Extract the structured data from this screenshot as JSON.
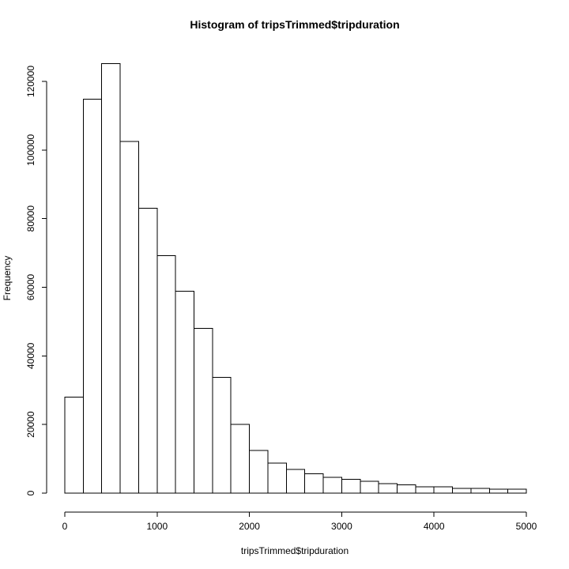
{
  "chart_data": {
    "type": "bar",
    "title": "Histogram of tripsTrimmed$tripduration",
    "xlabel": "tripsTrimmed$tripduration",
    "ylabel": "Frequency",
    "bin_width": 200,
    "xlim": [
      0,
      5000
    ],
    "ylim": [
      0,
      125000
    ],
    "x_ticks": [
      0,
      1000,
      2000,
      3000,
      4000,
      5000
    ],
    "y_ticks": [
      0,
      20000,
      40000,
      60000,
      80000,
      100000,
      120000
    ],
    "bins": [
      {
        "start": 0,
        "end": 200,
        "value": 28000
      },
      {
        "start": 200,
        "end": 400,
        "value": 114800
      },
      {
        "start": 400,
        "end": 600,
        "value": 125200
      },
      {
        "start": 600,
        "end": 800,
        "value": 102500
      },
      {
        "start": 800,
        "end": 1000,
        "value": 83000
      },
      {
        "start": 1000,
        "end": 1200,
        "value": 69200
      },
      {
        "start": 1200,
        "end": 1400,
        "value": 58800
      },
      {
        "start": 1400,
        "end": 1600,
        "value": 48000
      },
      {
        "start": 1600,
        "end": 1800,
        "value": 33700
      },
      {
        "start": 1800,
        "end": 2000,
        "value": 20000
      },
      {
        "start": 2000,
        "end": 2200,
        "value": 12400
      },
      {
        "start": 2200,
        "end": 2400,
        "value": 8700
      },
      {
        "start": 2400,
        "end": 2600,
        "value": 6900
      },
      {
        "start": 2600,
        "end": 2800,
        "value": 5600
      },
      {
        "start": 2800,
        "end": 3000,
        "value": 4600
      },
      {
        "start": 3000,
        "end": 3200,
        "value": 4000
      },
      {
        "start": 3200,
        "end": 3400,
        "value": 3500
      },
      {
        "start": 3400,
        "end": 3600,
        "value": 2800
      },
      {
        "start": 3600,
        "end": 3800,
        "value": 2400
      },
      {
        "start": 3800,
        "end": 4000,
        "value": 1900
      },
      {
        "start": 4000,
        "end": 4200,
        "value": 1800
      },
      {
        "start": 4200,
        "end": 4400,
        "value": 1400
      },
      {
        "start": 4400,
        "end": 4600,
        "value": 1400
      },
      {
        "start": 4600,
        "end": 4800,
        "value": 1200
      },
      {
        "start": 4800,
        "end": 5000,
        "value": 1200
      }
    ]
  }
}
